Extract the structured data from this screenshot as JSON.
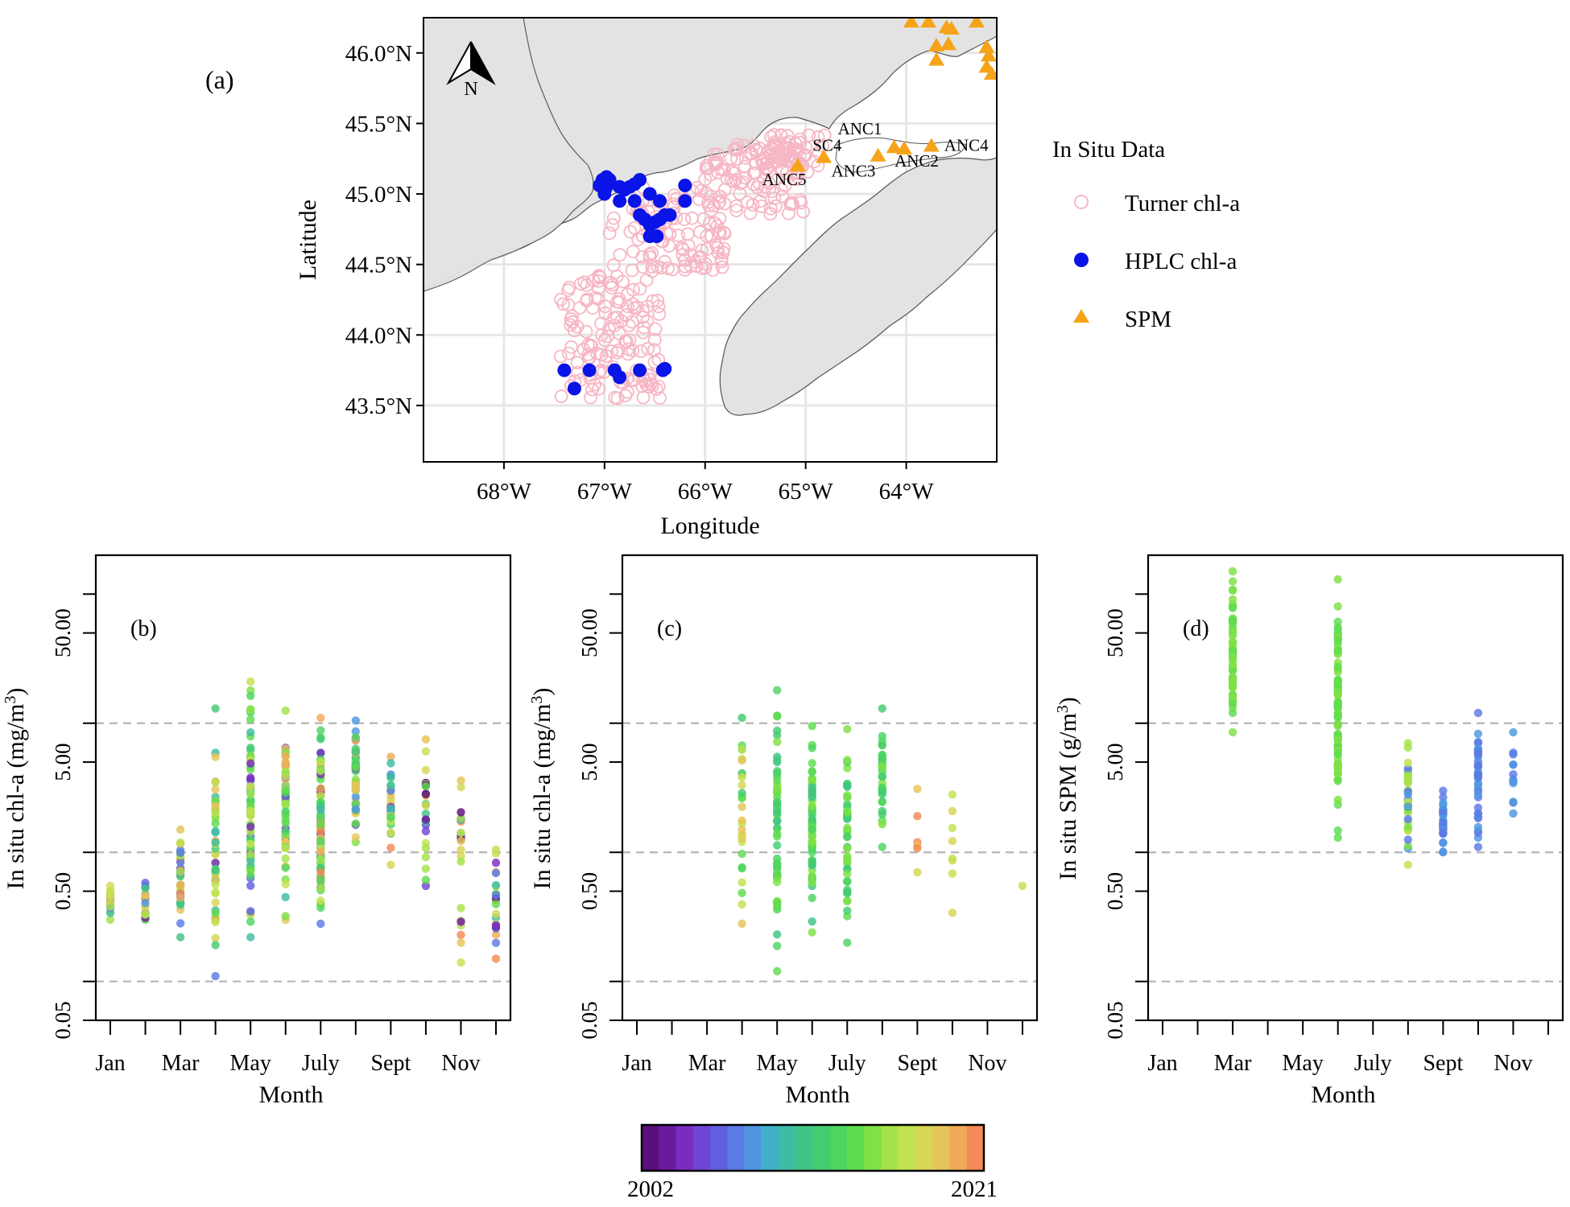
{
  "figure": {
    "panel_a_label": "(a)",
    "colorbar": {
      "min_label": "2002",
      "max_label": "2021",
      "colors": [
        "#5a0f7a",
        "#6b1a9e",
        "#7a2bc0",
        "#6f45d6",
        "#5f5fe0",
        "#5b7ae6",
        "#4e97e0",
        "#43b0c8",
        "#3fbca4",
        "#40c485",
        "#44cc70",
        "#4ed461",
        "#5fdc4f",
        "#7fe145",
        "#a5e24a",
        "#c2e24f",
        "#d7d655",
        "#e6c458",
        "#f0ab5a",
        "#f48a55"
      ]
    },
    "legend": {
      "title": "In Situ Data",
      "items": [
        {
          "label": "Turner chl-a",
          "color": "#f7b6c4",
          "symbol": "open-circle"
        },
        {
          "label": "HPLC chl-a",
          "color": "#0a14e6",
          "symbol": "filled-circle"
        },
        {
          "label": "SPM",
          "color": "#f5a41a",
          "symbol": "triangle"
        }
      ]
    }
  },
  "chart_data": [
    {
      "id": "a",
      "type": "scatter",
      "subtype": "map",
      "xlabel": "Longitude",
      "ylabel": "Latitude",
      "xlim": [
        -68.8,
        -63.1
      ],
      "ylim": [
        43.1,
        46.25
      ],
      "xticks": [
        -68,
        -67,
        -66,
        -65,
        -64
      ],
      "xtick_labels": [
        "68°W",
        "67°W",
        "66°W",
        "65°W",
        "64°W"
      ],
      "yticks": [
        43.5,
        44.0,
        44.5,
        45.0,
        45.5,
        46.0
      ],
      "ytick_labels": [
        "43.5°N",
        "44.0°N",
        "44.5°N",
        "45.0°N",
        "45.5°N",
        "46.0°N"
      ],
      "north_arrow_label": "N",
      "turner_regions": [
        {
          "lon": [
            -67.45,
            -66.45
          ],
          "lat": [
            43.55,
            44.45
          ],
          "n": 140
        },
        {
          "lon": [
            -66.95,
            -65.8
          ],
          "lat": [
            44.45,
            45.05
          ],
          "n": 110
        },
        {
          "lon": [
            -66.0,
            -65.0
          ],
          "lat": [
            44.85,
            45.35
          ],
          "n": 110
        },
        {
          "lon": [
            -65.5,
            -64.8
          ],
          "lat": [
            45.15,
            45.42
          ],
          "n": 45
        }
      ],
      "hplc_points": [
        [
          -67.02,
          45.1
        ],
        [
          -66.98,
          45.12
        ],
        [
          -66.95,
          45.1
        ],
        [
          -66.98,
          45.05
        ],
        [
          -67.05,
          45.06
        ],
        [
          -67.0,
          45.0
        ],
        [
          -66.85,
          45.05
        ],
        [
          -66.8,
          45.03
        ],
        [
          -66.75,
          45.05
        ],
        [
          -66.7,
          45.07
        ],
        [
          -66.65,
          45.1
        ],
        [
          -66.85,
          44.95
        ],
        [
          -66.7,
          44.95
        ],
        [
          -66.55,
          45.0
        ],
        [
          -66.45,
          44.95
        ],
        [
          -66.65,
          44.85
        ],
        [
          -66.6,
          44.82
        ],
        [
          -66.55,
          44.78
        ],
        [
          -66.5,
          44.8
        ],
        [
          -66.45,
          44.82
        ],
        [
          -66.4,
          44.85
        ],
        [
          -66.55,
          44.7
        ],
        [
          -66.48,
          44.7
        ],
        [
          -66.35,
          44.85
        ],
        [
          -66.2,
          45.06
        ],
        [
          -66.2,
          44.95
        ],
        [
          -67.4,
          43.75
        ],
        [
          -67.3,
          43.62
        ],
        [
          -67.15,
          43.75
        ],
        [
          -66.9,
          43.75
        ],
        [
          -66.85,
          43.7
        ],
        [
          -66.65,
          43.75
        ],
        [
          -66.42,
          43.75
        ],
        [
          -66.4,
          43.76
        ]
      ],
      "spm_stations": [
        {
          "name": "SC4",
          "lon": -64.82,
          "lat": 45.26
        },
        {
          "name": "ANC1",
          "lon": -64.12,
          "lat": 45.33
        },
        {
          "name": "ANC2",
          "lon": -64.02,
          "lat": 45.32
        },
        {
          "name": "ANC3",
          "lon": -64.28,
          "lat": 45.27
        },
        {
          "name": "ANC4",
          "lon": -63.75,
          "lat": 45.34
        },
        {
          "name": "ANC5",
          "lon": -65.08,
          "lat": 45.2
        }
      ],
      "spm_extra_points": [
        [
          -63.95,
          46.22
        ],
        [
          -63.78,
          46.22
        ],
        [
          -63.6,
          46.18
        ],
        [
          -63.55,
          46.17
        ],
        [
          -63.7,
          46.05
        ],
        [
          -63.58,
          46.06
        ],
        [
          -63.7,
          45.95
        ],
        [
          -63.2,
          46.04
        ],
        [
          -63.18,
          45.98
        ],
        [
          -63.2,
          45.9
        ],
        [
          -63.15,
          45.85
        ],
        [
          -63.3,
          46.22
        ]
      ]
    },
    {
      "id": "b",
      "type": "scatter",
      "panel_label": "(b)",
      "xlabel": "Month",
      "ylabel": "In situ chl-a (mg/m",
      "ylabel_sup": "3",
      "ylabel_close": ")",
      "yscale": "log",
      "ylim": [
        0.05,
        200
      ],
      "yticks": [
        0.05,
        0.5,
        5.0,
        50.0
      ],
      "ytick_labels": [
        "0.05",
        "0.50",
        "5.00",
        "50.00"
      ],
      "ref_lines": [
        0.1,
        1,
        10
      ],
      "xticks": [
        1,
        2,
        3,
        4,
        5,
        6,
        7,
        8,
        9,
        10,
        11,
        12
      ],
      "xtick_labels": [
        "Jan",
        "Mar",
        "May",
        "July",
        "Sept",
        "Nov"
      ],
      "xtick_label_months": [
        1,
        3,
        5,
        7,
        9,
        11
      ],
      "months": [
        {
          "month": 1,
          "min": 0.3,
          "max": 0.55,
          "n": 18,
          "colors": [
            0,
            2,
            5,
            8,
            12,
            14,
            15,
            16,
            17,
            18
          ]
        },
        {
          "month": 2,
          "min": 0.3,
          "max": 0.58,
          "n": 18,
          "colors": [
            1,
            4,
            6,
            9,
            12,
            14,
            16,
            17
          ]
        },
        {
          "month": 3,
          "min": 0.22,
          "max": 1.5,
          "n": 40,
          "colors": [
            5,
            9,
            12,
            14,
            15,
            16,
            17,
            18,
            19
          ]
        },
        {
          "month": 4,
          "min": 0.11,
          "max": 13,
          "n": 50,
          "colors": [
            2,
            5,
            8,
            10,
            12,
            13,
            14,
            15,
            16,
            17,
            18
          ]
        },
        {
          "month": 5,
          "min": 0.22,
          "max": 21,
          "n": 70,
          "colors": [
            2,
            4,
            8,
            10,
            11,
            12,
            13,
            14,
            15,
            16
          ]
        },
        {
          "month": 6,
          "min": 0.3,
          "max": 12.5,
          "n": 60,
          "colors": [
            3,
            8,
            10,
            11,
            12,
            13,
            14,
            15,
            17,
            18
          ]
        },
        {
          "month": 7,
          "min": 0.28,
          "max": 11,
          "n": 90,
          "colors": [
            2,
            5,
            8,
            10,
            11,
            12,
            14,
            15,
            16,
            17,
            18,
            19
          ]
        },
        {
          "month": 8,
          "min": 1.2,
          "max": 10.5,
          "n": 45,
          "colors": [
            3,
            6,
            9,
            10,
            11,
            12,
            13,
            17,
            18
          ]
        },
        {
          "month": 9,
          "min": 0.8,
          "max": 5.5,
          "n": 30,
          "colors": [
            2,
            5,
            8,
            11,
            15,
            16,
            17,
            18,
            19
          ]
        },
        {
          "month": 10,
          "min": 0.55,
          "max": 7.5,
          "n": 25,
          "colors": [
            0,
            1,
            3,
            9,
            12,
            14,
            15,
            16,
            17,
            18
          ]
        },
        {
          "month": 11,
          "min": 0.14,
          "max": 3.6,
          "n": 22,
          "colors": [
            0,
            1,
            5,
            9,
            14,
            15,
            16,
            17,
            19
          ]
        },
        {
          "month": 12,
          "min": 0.15,
          "max": 1.05,
          "n": 22,
          "colors": [
            0,
            2,
            5,
            8,
            12,
            15,
            16,
            18,
            19
          ]
        }
      ]
    },
    {
      "id": "c",
      "type": "scatter",
      "panel_label": "(c)",
      "xlabel": "Month",
      "ylabel": "In situ chl-a (mg/m",
      "ylabel_sup": "3",
      "ylabel_close": ")",
      "yscale": "log",
      "ylim": [
        0.05,
        200
      ],
      "yticks": [
        0.05,
        0.5,
        5.0,
        50.0
      ],
      "ytick_labels": [
        "0.05",
        "0.50",
        "5.00",
        "50.00"
      ],
      "ref_lines": [
        0.1,
        1,
        10
      ],
      "xticks": [
        1,
        2,
        3,
        4,
        5,
        6,
        7,
        8,
        9,
        10,
        11,
        12
      ],
      "xtick_labels": [
        "Jan",
        "Mar",
        "May",
        "July",
        "Sept",
        "Nov"
      ],
      "xtick_label_months": [
        1,
        3,
        5,
        7,
        9,
        11
      ],
      "months": [
        {
          "month": 4,
          "min": 0.28,
          "max": 11,
          "n": 28,
          "colors": [
            10,
            11,
            12,
            15,
            16,
            17
          ]
        },
        {
          "month": 5,
          "min": 0.12,
          "max": 18,
          "n": 55,
          "colors": [
            9,
            10,
            11,
            12,
            13
          ]
        },
        {
          "month": 6,
          "min": 0.24,
          "max": 9.5,
          "n": 60,
          "colors": [
            9,
            10,
            11,
            12,
            13
          ]
        },
        {
          "month": 7,
          "min": 0.2,
          "max": 9,
          "n": 45,
          "colors": [
            9,
            10,
            11,
            12,
            13
          ]
        },
        {
          "month": 8,
          "min": 1.1,
          "max": 13,
          "n": 35,
          "colors": [
            10,
            11,
            12,
            13
          ]
        },
        {
          "month": 9,
          "min": 0.7,
          "max": 3.1,
          "n": 6,
          "colors": [
            15,
            16,
            17,
            18,
            19
          ]
        },
        {
          "month": 10,
          "min": 0.34,
          "max": 2.8,
          "n": 8,
          "colors": [
            14,
            15,
            16
          ]
        },
        {
          "month": 12,
          "min": 0.55,
          "max": 0.55,
          "n": 1,
          "colors": [
            15
          ]
        }
      ]
    },
    {
      "id": "d",
      "type": "scatter",
      "panel_label": "(d)",
      "xlabel": "Month",
      "ylabel": "In situ SPM (g/m",
      "ylabel_sup": "3",
      "ylabel_close": ")",
      "yscale": "log",
      "ylim": [
        0.05,
        200
      ],
      "yticks": [
        0.05,
        0.5,
        5.0,
        50.0
      ],
      "ytick_labels": [
        "0.05",
        "0.50",
        "5.00",
        "50.00"
      ],
      "ref_lines": [
        0.1,
        1,
        10
      ],
      "xticks": [
        1,
        2,
        3,
        4,
        5,
        6,
        7,
        8,
        9,
        10,
        11,
        12
      ],
      "xtick_labels": [
        "Jan",
        "Mar",
        "May",
        "July",
        "Sept",
        "Nov"
      ],
      "xtick_label_months": [
        1,
        3,
        5,
        7,
        9,
        11
      ],
      "months": [
        {
          "month": 3,
          "min": 8.5,
          "max": 150,
          "n": 60,
          "colors": [
            12,
            13
          ]
        },
        {
          "month": 6,
          "min": 1.3,
          "max": 130,
          "n": 80,
          "colors": [
            12,
            13
          ]
        },
        {
          "month": 8,
          "min": 0.8,
          "max": 7,
          "n": 35,
          "colors": [
            5,
            6,
            13,
            14,
            15
          ]
        },
        {
          "month": 9,
          "min": 1.0,
          "max": 3.0,
          "n": 30,
          "colors": [
            5,
            6
          ]
        },
        {
          "month": 10,
          "min": 1.1,
          "max": 12,
          "n": 40,
          "colors": [
            5,
            6
          ]
        },
        {
          "month": 11,
          "min": 2.0,
          "max": 8.5,
          "n": 12,
          "colors": [
            5,
            6
          ]
        }
      ]
    }
  ]
}
